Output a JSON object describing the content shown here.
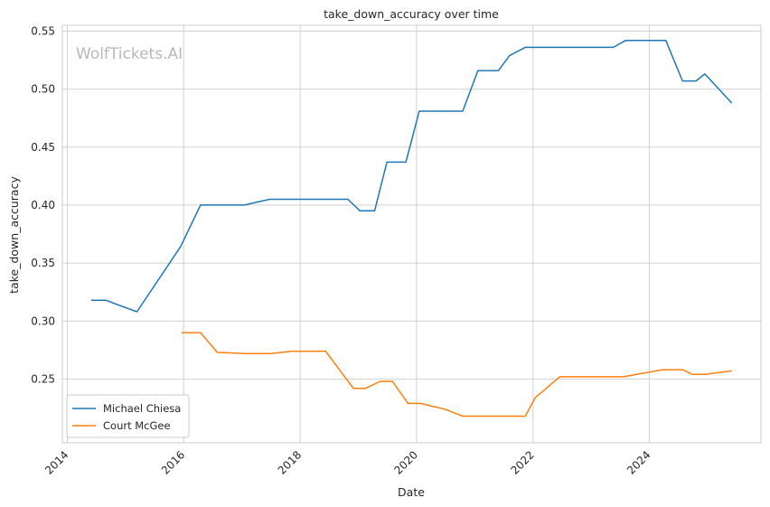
{
  "chart_data": {
    "type": "line",
    "title": "take_down_accuracy over time",
    "xlabel": "Date",
    "ylabel": "take_down_accuracy",
    "watermark": "WolfTickets.AI",
    "grid": true,
    "legend_position": "lower-left",
    "xlim": [
      "2013-12-01",
      "2025-12-01"
    ],
    "ylim": [
      0.195,
      0.555
    ],
    "xticks": [
      "2014",
      "2016",
      "2018",
      "2020",
      "2022",
      "2024"
    ],
    "yticks": [
      "0.25",
      "0.30",
      "0.35",
      "0.40",
      "0.45",
      "0.50",
      "0.55"
    ],
    "series": [
      {
        "name": "Michael Chiesa",
        "color": "#1f77b4",
        "x": [
          "2014-05-31",
          "2014-08-30",
          "2015-03-14",
          "2015-12-12",
          "2016-04-16",
          "2017-01-14",
          "2017-06-25",
          "2018-04-21",
          "2018-10-27",
          "2019-01-11",
          "2019-04-13",
          "2019-06-29",
          "2019-10-26",
          "2020-01-18",
          "2020-06-27",
          "2020-10-17",
          "2021-01-20",
          "2021-05-29",
          "2021-08-07",
          "2021-11-13",
          "2022-05-14",
          "2022-11-19",
          "2023-05-20",
          "2023-08-05",
          "2024-01-20",
          "2024-04-13",
          "2024-07-27",
          "2024-10-19",
          "2024-12-14",
          "2025-06-01"
        ],
        "y": [
          0.318,
          0.318,
          0.308,
          0.364,
          0.4,
          0.4,
          0.405,
          0.405,
          0.405,
          0.395,
          0.395,
          0.437,
          0.437,
          0.481,
          0.481,
          0.481,
          0.516,
          0.516,
          0.529,
          0.536,
          0.536,
          0.536,
          0.536,
          0.542,
          0.542,
          0.542,
          0.507,
          0.507,
          0.513,
          0.488
        ]
      },
      {
        "name": "Court McGee",
        "color": "#ff7f0e",
        "x": [
          "2015-12-19",
          "2016-04-16",
          "2016-07-30",
          "2017-01-28",
          "2017-06-25",
          "2017-11-11",
          "2018-06-09",
          "2018-12-01",
          "2019-02-15",
          "2019-05-18",
          "2019-08-03",
          "2019-11-09",
          "2020-01-25",
          "2020-06-27",
          "2020-10-17",
          "2021-03-27",
          "2021-07-17",
          "2021-11-13",
          "2022-01-15",
          "2022-06-18",
          "2022-12-17",
          "2023-07-22",
          "2024-03-23",
          "2024-07-27",
          "2024-09-28",
          "2024-12-14",
          "2025-06-01"
        ],
        "y": [
          0.29,
          0.29,
          0.273,
          0.272,
          0.272,
          0.274,
          0.274,
          0.242,
          0.242,
          0.248,
          0.248,
          0.229,
          0.229,
          0.224,
          0.218,
          0.218,
          0.218,
          0.218,
          0.234,
          0.252,
          0.252,
          0.252,
          0.258,
          0.258,
          0.254,
          0.254,
          0.257
        ]
      }
    ]
  }
}
